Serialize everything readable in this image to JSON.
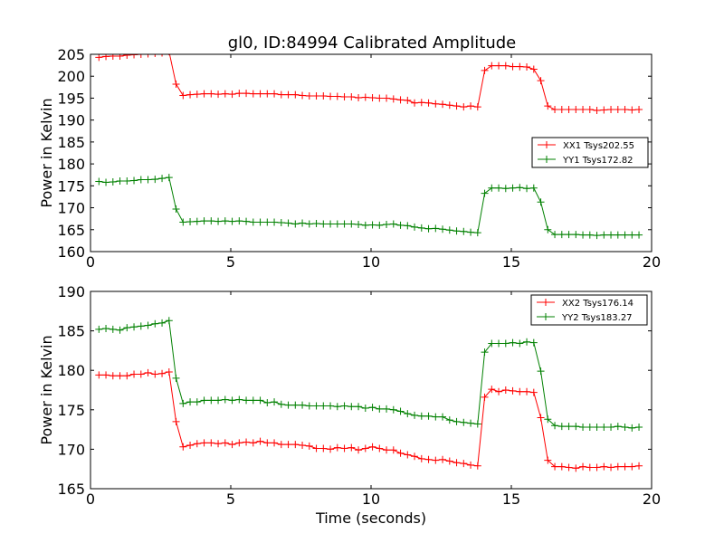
{
  "title": "gl0, ID:84994 Calibrated Amplitude",
  "chart_data": [
    {
      "type": "line",
      "title": "gl0, ID:84994 Calibrated Amplitude",
      "xlabel": "",
      "ylabel": "Power in Kelvin",
      "xlim": [
        0,
        20
      ],
      "ylim": [
        160,
        205
      ],
      "xticks": [
        "0",
        "5",
        "10",
        "15",
        "20"
      ],
      "yticks": [
        "160",
        "165",
        "170",
        "175",
        "180",
        "185",
        "190",
        "195",
        "200",
        "205"
      ],
      "grid": false,
      "legend_position": "right",
      "x": [
        0.3,
        0.55,
        0.8,
        1.05,
        1.3,
        1.55,
        1.8,
        2.05,
        2.3,
        2.55,
        2.8,
        3.05,
        3.3,
        3.55,
        3.8,
        4.05,
        4.3,
        4.55,
        4.8,
        5.05,
        5.3,
        5.55,
        5.8,
        6.05,
        6.3,
        6.55,
        6.8,
        7.05,
        7.3,
        7.55,
        7.8,
        8.05,
        8.3,
        8.55,
        8.8,
        9.05,
        9.3,
        9.55,
        9.8,
        10.05,
        10.3,
        10.55,
        10.8,
        11.05,
        11.3,
        11.55,
        11.8,
        12.05,
        12.3,
        12.55,
        12.8,
        13.05,
        13.3,
        13.55,
        13.8,
        14.05,
        14.3,
        14.55,
        14.8,
        15.05,
        15.3,
        15.55,
        15.8,
        16.05,
        16.3,
        16.55,
        16.8,
        17.05,
        17.3,
        17.55,
        17.8,
        18.05,
        18.3,
        18.55,
        18.8,
        19.05,
        19.3,
        19.55
      ],
      "series": [
        {
          "name": "XX1 Tsys202.55",
          "color": "#ff0000",
          "values": [
            204.3,
            204.5,
            204.6,
            204.6,
            204.8,
            204.9,
            205.0,
            205.1,
            205.2,
            205.3,
            205.6,
            198.2,
            195.6,
            195.8,
            195.9,
            196.0,
            196.0,
            195.9,
            196.0,
            195.9,
            196.1,
            196.1,
            196.0,
            196.0,
            196.0,
            196.0,
            195.8,
            195.8,
            195.8,
            195.6,
            195.5,
            195.5,
            195.5,
            195.4,
            195.4,
            195.3,
            195.3,
            195.1,
            195.2,
            195.1,
            195.0,
            195.0,
            194.8,
            194.6,
            194.5,
            193.9,
            194.0,
            193.9,
            193.7,
            193.6,
            193.4,
            193.2,
            193.0,
            193.2,
            193.0,
            201.3,
            202.4,
            202.4,
            202.4,
            202.2,
            202.2,
            202.1,
            201.6,
            199.0,
            193.2,
            192.4,
            192.4,
            192.4,
            192.4,
            192.4,
            192.4,
            192.2,
            192.3,
            192.4,
            192.4,
            192.4,
            192.3,
            192.4
          ]
        },
        {
          "name": "YY1 Tsys172.82",
          "color": "#008000",
          "values": [
            176.0,
            175.8,
            175.9,
            176.1,
            176.1,
            176.2,
            176.4,
            176.4,
            176.5,
            176.7,
            176.9,
            169.7,
            166.7,
            166.8,
            166.9,
            167.0,
            167.0,
            166.9,
            167.0,
            166.9,
            167.0,
            166.9,
            166.7,
            166.7,
            166.7,
            166.7,
            166.6,
            166.5,
            166.3,
            166.5,
            166.3,
            166.4,
            166.3,
            166.3,
            166.3,
            166.3,
            166.3,
            166.2,
            166.0,
            166.1,
            166.0,
            166.2,
            166.3,
            166.0,
            165.9,
            165.6,
            165.4,
            165.2,
            165.3,
            165.1,
            164.9,
            164.7,
            164.6,
            164.4,
            164.3,
            173.3,
            174.5,
            174.5,
            174.4,
            174.5,
            174.6,
            174.4,
            174.5,
            171.3,
            165.0,
            163.9,
            163.9,
            163.9,
            163.9,
            163.8,
            163.8,
            163.7,
            163.8,
            163.8,
            163.8,
            163.8,
            163.8,
            163.8
          ]
        }
      ]
    },
    {
      "type": "line",
      "title": "",
      "xlabel": "Time (seconds)",
      "ylabel": "Power in Kelvin",
      "xlim": [
        0,
        20
      ],
      "ylim": [
        165,
        190
      ],
      "xticks": [
        "0",
        "5",
        "10",
        "15",
        "20"
      ],
      "yticks": [
        "165",
        "170",
        "175",
        "180",
        "185",
        "190"
      ],
      "grid": false,
      "legend_position": "top-right",
      "x": [
        0.3,
        0.55,
        0.8,
        1.05,
        1.3,
        1.55,
        1.8,
        2.05,
        2.3,
        2.55,
        2.8,
        3.05,
        3.3,
        3.55,
        3.8,
        4.05,
        4.3,
        4.55,
        4.8,
        5.05,
        5.3,
        5.55,
        5.8,
        6.05,
        6.3,
        6.55,
        6.8,
        7.05,
        7.3,
        7.55,
        7.8,
        8.05,
        8.3,
        8.55,
        8.8,
        9.05,
        9.3,
        9.55,
        9.8,
        10.05,
        10.3,
        10.55,
        10.8,
        11.05,
        11.3,
        11.55,
        11.8,
        12.05,
        12.3,
        12.55,
        12.8,
        13.05,
        13.3,
        13.55,
        13.8,
        14.05,
        14.3,
        14.55,
        14.8,
        15.05,
        15.3,
        15.55,
        15.8,
        16.05,
        16.3,
        16.55,
        16.8,
        17.05,
        17.3,
        17.55,
        17.8,
        18.05,
        18.3,
        18.55,
        18.8,
        19.05,
        19.3,
        19.55
      ],
      "series": [
        {
          "name": "XX2 Tsys176.14",
          "color": "#ff0000",
          "values": [
            179.4,
            179.4,
            179.3,
            179.3,
            179.3,
            179.5,
            179.5,
            179.7,
            179.5,
            179.6,
            179.8,
            173.5,
            170.3,
            170.5,
            170.7,
            170.8,
            170.8,
            170.7,
            170.8,
            170.6,
            170.8,
            170.9,
            170.8,
            171.0,
            170.8,
            170.8,
            170.6,
            170.6,
            170.6,
            170.5,
            170.4,
            170.1,
            170.1,
            170.0,
            170.2,
            170.1,
            170.2,
            169.9,
            170.1,
            170.3,
            170.1,
            169.9,
            169.9,
            169.5,
            169.3,
            169.1,
            168.8,
            168.7,
            168.6,
            168.7,
            168.5,
            168.3,
            168.2,
            168.0,
            167.9,
            176.6,
            177.6,
            177.3,
            177.5,
            177.4,
            177.3,
            177.3,
            177.2,
            174.0,
            168.6,
            167.8,
            167.8,
            167.7,
            167.6,
            167.8,
            167.7,
            167.7,
            167.8,
            167.7,
            167.8,
            167.8,
            167.8,
            167.9
          ]
        },
        {
          "name": "YY2 Tsys183.27",
          "color": "#008000",
          "values": [
            185.2,
            185.3,
            185.2,
            185.1,
            185.4,
            185.5,
            185.6,
            185.7,
            185.9,
            186.0,
            186.3,
            179.0,
            175.8,
            176.0,
            176.0,
            176.2,
            176.2,
            176.2,
            176.3,
            176.2,
            176.3,
            176.2,
            176.2,
            176.2,
            175.9,
            176.0,
            175.7,
            175.6,
            175.6,
            175.6,
            175.5,
            175.5,
            175.5,
            175.5,
            175.4,
            175.5,
            175.4,
            175.4,
            175.2,
            175.3,
            175.1,
            175.1,
            175.0,
            174.8,
            174.5,
            174.3,
            174.2,
            174.2,
            174.1,
            174.1,
            173.7,
            173.5,
            173.4,
            173.3,
            173.2,
            182.3,
            183.4,
            183.4,
            183.4,
            183.5,
            183.4,
            183.6,
            183.5,
            179.9,
            173.8,
            173.0,
            172.9,
            172.9,
            172.9,
            172.8,
            172.8,
            172.8,
            172.8,
            172.8,
            172.9,
            172.8,
            172.7,
            172.8
          ]
        }
      ]
    }
  ]
}
